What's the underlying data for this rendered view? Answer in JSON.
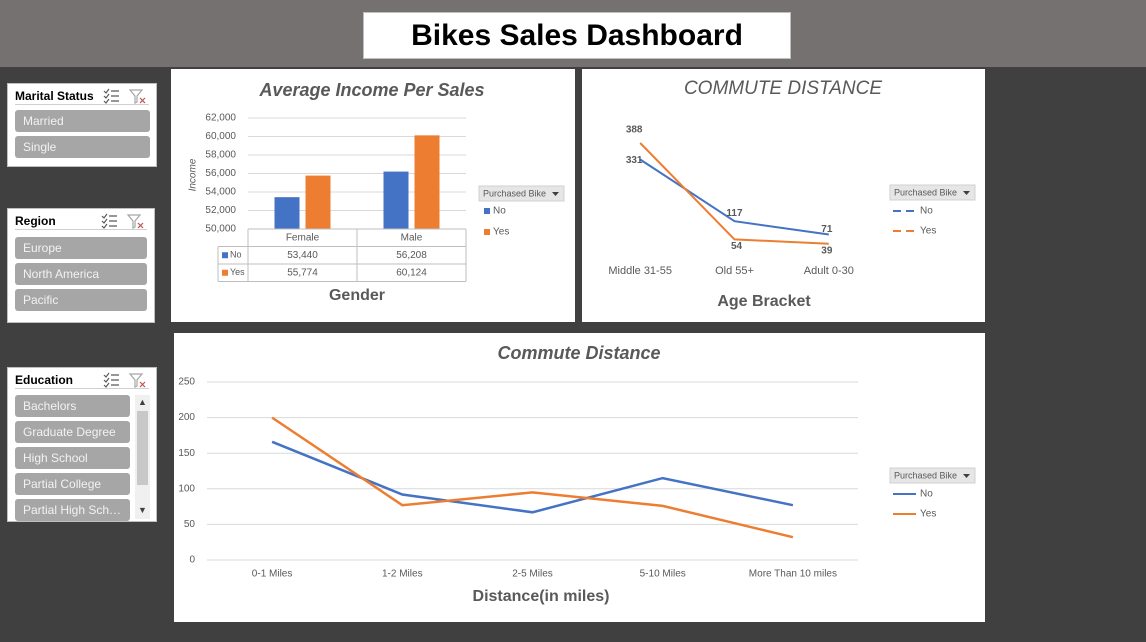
{
  "header": {
    "title": "Bikes Sales Dashboard"
  },
  "slicers": [
    {
      "title": "Marital Status",
      "items": [
        "Married",
        "Single"
      ]
    },
    {
      "title": "Region",
      "items": [
        "Europe",
        "North America",
        "Pacific"
      ]
    },
    {
      "title": "Education",
      "items": [
        "Bachelors",
        "Graduate Degree",
        "High School",
        "Partial College",
        "Partial High Sch…"
      ]
    }
  ],
  "chart_data": [
    {
      "type": "bar",
      "title": "Average Income Per Sales",
      "y_label": "Income",
      "x_label": "Gender",
      "categories": [
        "Female",
        "Male"
      ],
      "series": [
        {
          "name": "No",
          "color": "#4472c4",
          "values": [
            53440,
            56208
          ],
          "value_labels": [
            "53,440",
            "56,208"
          ]
        },
        {
          "name": "Yes",
          "color": "#ed7d31",
          "values": [
            55774,
            60124
          ],
          "value_labels": [
            "55,774",
            "60,124"
          ]
        }
      ],
      "ylim": [
        50000,
        62000
      ],
      "yticks": [
        {
          "value": 50000,
          "label": "50,000"
        },
        {
          "value": 52000,
          "label": "52,000"
        },
        {
          "value": 54000,
          "label": "54,000"
        },
        {
          "value": 56000,
          "label": "56,000"
        },
        {
          "value": 58000,
          "label": "58,000"
        },
        {
          "value": 60000,
          "label": "60,000"
        },
        {
          "value": 62000,
          "label": "62,000"
        }
      ],
      "grid": true,
      "legend_title": "Purchased Bike",
      "legend": "right"
    },
    {
      "type": "line",
      "title": "COMMUTE DISTANCE",
      "x_label": "Age Bracket",
      "categories": [
        "Middle 31-55",
        "Old 55+",
        "Adult 0-30"
      ],
      "series": [
        {
          "name": "No",
          "color": "#4472c4",
          "values": [
            331,
            117,
            71
          ]
        },
        {
          "name": "Yes",
          "color": "#ed7d31",
          "values": [
            388,
            54,
            39
          ]
        }
      ],
      "legend_title": "Purchased Bike",
      "legend": "right"
    },
    {
      "type": "line",
      "title": "Commute Distance",
      "x_label": "Distance(in miles)",
      "categories": [
        "0-1 Miles",
        "1-2 Miles",
        "2-5 Miles",
        "5-10 Miles",
        "More Than 10 miles"
      ],
      "series": [
        {
          "name": "No",
          "color": "#4472c4",
          "values": [
            166,
            92,
            67,
            115,
            77
          ]
        },
        {
          "name": "Yes",
          "color": "#ed7d31",
          "values": [
            200,
            77,
            95,
            76,
            32
          ]
        }
      ],
      "ylim": [
        0,
        250
      ],
      "yticks": [
        0,
        50,
        100,
        150,
        200,
        250
      ],
      "grid": true,
      "legend_title": "Purchased Bike",
      "legend": "right"
    }
  ]
}
